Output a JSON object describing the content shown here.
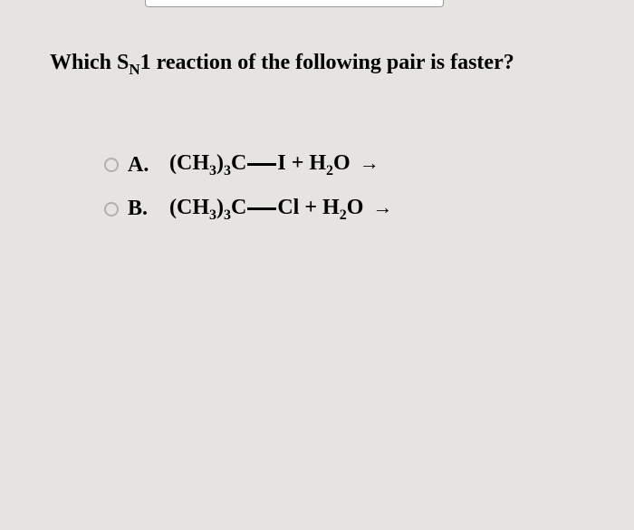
{
  "background_color": "#e6e4e1",
  "text_color": "#000000",
  "question": {
    "prefix": "Which S",
    "sub": "N",
    "suffix": "1 reaction of the following pair is faster?",
    "font_size": 24,
    "font_weight": "bold"
  },
  "options": [
    {
      "label": "A.",
      "selected": false,
      "formula": {
        "p1": "(CH",
        "s1": "3",
        "p2": ")",
        "s2": "3",
        "p3": "C",
        "halogen": "I",
        "p4": " + H",
        "s3": "2",
        "p5": "O ",
        "arrow": "→"
      }
    },
    {
      "label": "B.",
      "selected": false,
      "formula": {
        "p1": "(CH",
        "s1": "3",
        "p2": ")",
        "s2": "3",
        "p3": "C",
        "halogen": "Cl",
        "p4": " + H",
        "s3": "2",
        "p5": "O ",
        "arrow": "→"
      }
    }
  ],
  "radio_style": {
    "border_color": "#b0b0b0",
    "size": 16
  }
}
